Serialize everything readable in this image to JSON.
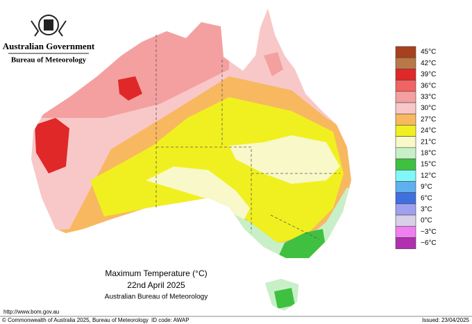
{
  "header": {
    "government": "Australian Government",
    "agency": "Bureau of Meteorology"
  },
  "map": {
    "title": "Maximum Temperature (°C)",
    "date": "22nd April 2025",
    "source": "Australian Bureau of Meteorology"
  },
  "legend": {
    "items": [
      {
        "label": "45°C",
        "color": "#a8401e"
      },
      {
        "label": "42°C",
        "color": "#b87848"
      },
      {
        "label": "39°C",
        "color": "#e02828"
      },
      {
        "label": "36°C",
        "color": "#f06464"
      },
      {
        "label": "33°C",
        "color": "#f4a0a0"
      },
      {
        "label": "30°C",
        "color": "#f8c8c8"
      },
      {
        "label": "27°C",
        "color": "#f8b860"
      },
      {
        "label": "24°C",
        "color": "#f0f020"
      },
      {
        "label": "21°C",
        "color": "#f8f8c8"
      },
      {
        "label": "18°C",
        "color": "#c8f0c8"
      },
      {
        "label": "15°C",
        "color": "#40c040"
      },
      {
        "label": "12°C",
        "color": "#80f8f8"
      },
      {
        "label": "9°C",
        "color": "#60b0f0"
      },
      {
        "label": "6°C",
        "color": "#4070e0"
      },
      {
        "label": "3°C",
        "color": "#a0a0f0"
      },
      {
        "label": "0°C",
        "color": "#d8d0e8"
      },
      {
        "label": "−3°C",
        "color": "#f080f0"
      },
      {
        "label": "−6°C",
        "color": "#b030b0"
      }
    ]
  },
  "footer": {
    "url": "http://www.bom.gov.au",
    "copyright": "© Commonwealth of Australia 2025, Bureau of Meteorology",
    "id": "ID code: AWAP",
    "issued": "Issued: 23/04/2025"
  }
}
